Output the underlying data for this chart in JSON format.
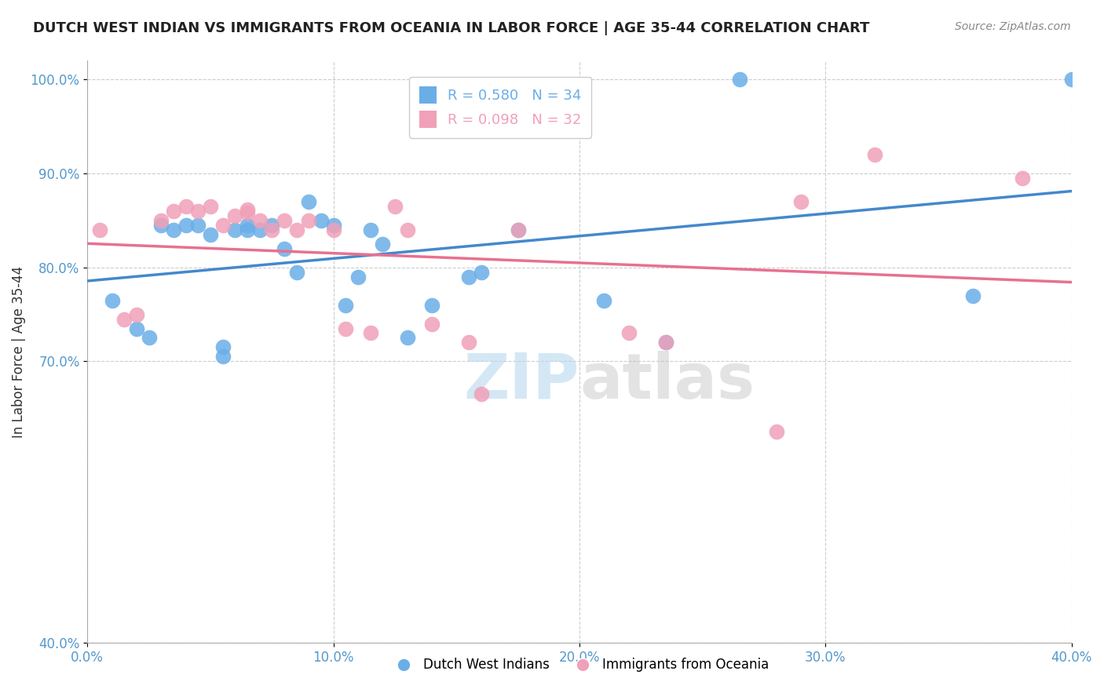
{
  "title": "DUTCH WEST INDIAN VS IMMIGRANTS FROM OCEANIA IN LABOR FORCE | AGE 35-44 CORRELATION CHART",
  "source": "Source: ZipAtlas.com",
  "xlabel": "",
  "ylabel": "In Labor Force | Age 35-44",
  "xlim": [
    0.0,
    0.4
  ],
  "ylim": [
    0.4,
    1.02
  ],
  "xticks": [
    0.0,
    0.1,
    0.2,
    0.3,
    0.4
  ],
  "xtick_labels": [
    "0.0%",
    "10.0%",
    "20.0%",
    "30.0%",
    "40.0%"
  ],
  "yticks": [
    0.4,
    0.7,
    0.8,
    0.9,
    1.0
  ],
  "ytick_labels": [
    "40.0%",
    "70.0%",
    "80.0%",
    "90.0%",
    "100.0%"
  ],
  "blue_R": 0.58,
  "blue_N": 34,
  "pink_R": 0.098,
  "pink_N": 32,
  "blue_color": "#6aaee8",
  "pink_color": "#f0a0b8",
  "blue_line_color": "#4488cc",
  "pink_line_color": "#e87090",
  "legend_label_blue": "Dutch West Indians",
  "legend_label_pink": "Immigrants from Oceania",
  "watermark_zip": "ZIP",
  "watermark_atlas": "atlas",
  "blue_scatter_x": [
    0.01,
    0.02,
    0.025,
    0.03,
    0.035,
    0.04,
    0.045,
    0.05,
    0.055,
    0.055,
    0.06,
    0.065,
    0.065,
    0.07,
    0.075,
    0.08,
    0.085,
    0.09,
    0.095,
    0.1,
    0.105,
    0.11,
    0.115,
    0.12,
    0.13,
    0.14,
    0.155,
    0.16,
    0.175,
    0.21,
    0.235,
    0.265,
    0.36,
    0.4
  ],
  "blue_scatter_y": [
    0.765,
    0.735,
    0.725,
    0.845,
    0.84,
    0.845,
    0.845,
    0.835,
    0.705,
    0.715,
    0.84,
    0.845,
    0.84,
    0.84,
    0.845,
    0.82,
    0.795,
    0.87,
    0.85,
    0.845,
    0.76,
    0.79,
    0.84,
    0.825,
    0.725,
    0.76,
    0.79,
    0.795,
    0.84,
    0.765,
    0.72,
    1.0,
    0.77,
    1.0
  ],
  "pink_scatter_x": [
    0.005,
    0.015,
    0.02,
    0.03,
    0.035,
    0.04,
    0.045,
    0.05,
    0.055,
    0.06,
    0.065,
    0.065,
    0.07,
    0.075,
    0.08,
    0.085,
    0.09,
    0.1,
    0.105,
    0.115,
    0.125,
    0.13,
    0.14,
    0.155,
    0.16,
    0.175,
    0.22,
    0.235,
    0.28,
    0.29,
    0.32,
    0.38
  ],
  "pink_scatter_y": [
    0.84,
    0.745,
    0.75,
    0.85,
    0.86,
    0.865,
    0.86,
    0.865,
    0.845,
    0.855,
    0.858,
    0.862,
    0.85,
    0.84,
    0.85,
    0.84,
    0.85,
    0.84,
    0.735,
    0.73,
    0.865,
    0.84,
    0.74,
    0.72,
    0.665,
    0.84,
    0.73,
    0.72,
    0.625,
    0.87,
    0.92,
    0.895
  ],
  "grid_color": "#cccccc",
  "background_color": "#ffffff",
  "title_fontsize": 13,
  "axis_label_fontsize": 12,
  "tick_fontsize": 12,
  "tick_color": "#5599cc"
}
